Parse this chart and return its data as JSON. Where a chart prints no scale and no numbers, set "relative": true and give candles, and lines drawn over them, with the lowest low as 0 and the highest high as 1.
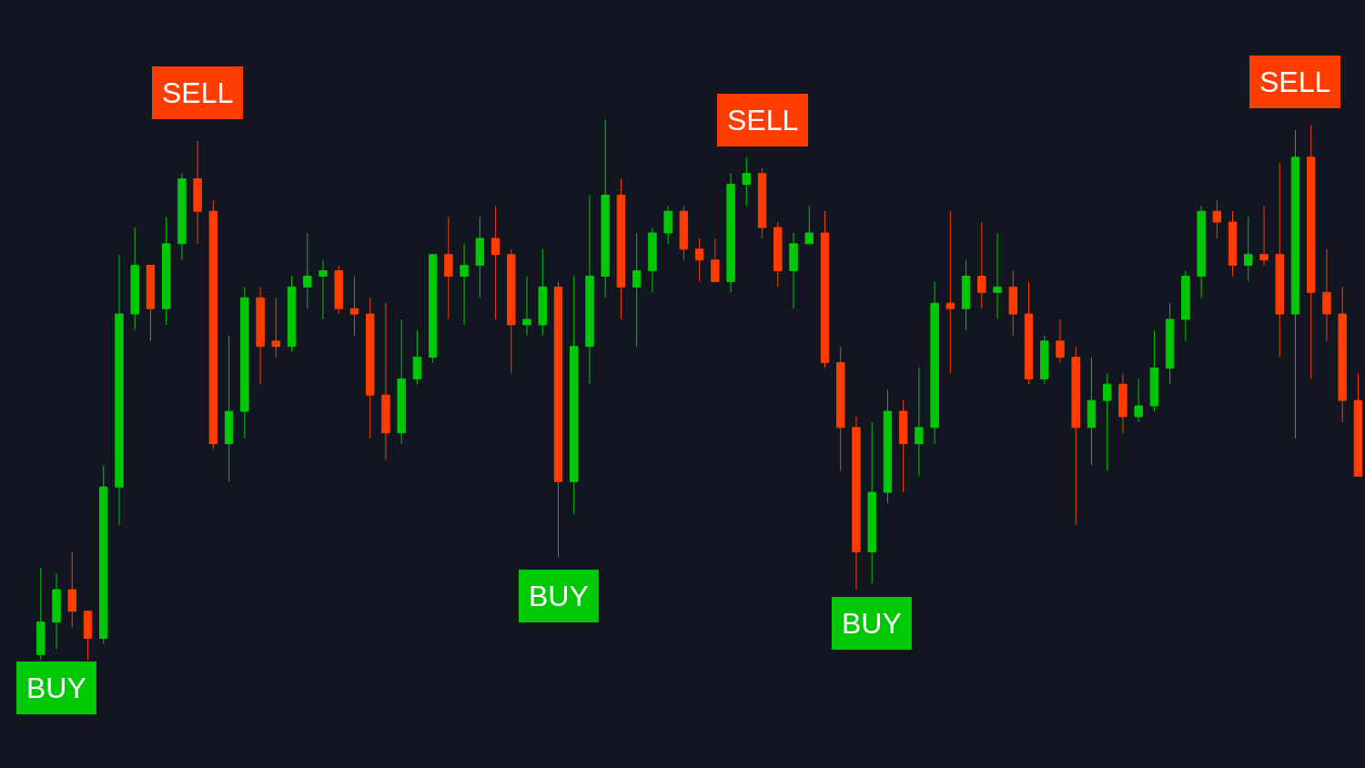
{
  "chart_data": {
    "type": "candlestick",
    "relative": true,
    "categories": [
      null,
      null,
      null,
      null,
      null,
      null,
      null,
      null,
      null,
      null,
      null,
      null,
      null,
      null,
      null,
      null,
      null,
      null,
      null,
      null,
      null,
      null,
      null,
      null,
      null,
      null,
      null,
      null,
      null,
      null,
      null,
      null,
      null,
      null,
      null,
      null,
      null,
      null,
      null,
      null,
      null,
      null,
      null,
      null,
      null,
      null,
      null,
      null,
      null,
      null,
      null,
      null,
      null,
      null,
      null,
      null,
      null,
      null,
      null,
      null,
      null,
      null,
      null,
      null,
      null,
      null,
      null,
      null,
      null,
      null,
      null,
      null,
      null,
      null,
      null,
      null,
      null,
      null,
      null,
      null,
      null,
      null,
      null,
      null,
      null
    ],
    "ohlc": [
      [
        0.01,
        0.17,
        0.0,
        0.07
      ],
      [
        0.07,
        0.16,
        0.02,
        0.13
      ],
      [
        0.13,
        0.2,
        0.06,
        0.09
      ],
      [
        0.09,
        0.09,
        0.0,
        0.04
      ],
      [
        0.04,
        0.36,
        0.03,
        0.32
      ],
      [
        0.32,
        0.75,
        0.25,
        0.64
      ],
      [
        0.64,
        0.8,
        0.61,
        0.73
      ],
      [
        0.73,
        0.73,
        0.59,
        0.65
      ],
      [
        0.65,
        0.82,
        0.62,
        0.77
      ],
      [
        0.77,
        0.9,
        0.74,
        0.89
      ],
      [
        0.89,
        0.96,
        0.77,
        0.83
      ],
      [
        0.83,
        0.85,
        0.39,
        0.4
      ],
      [
        0.4,
        0.6,
        0.33,
        0.46
      ],
      [
        0.46,
        0.69,
        0.41,
        0.67
      ],
      [
        0.67,
        0.69,
        0.51,
        0.58
      ],
      [
        0.59,
        0.67,
        0.56,
        0.58
      ],
      [
        0.58,
        0.71,
        0.57,
        0.69
      ],
      [
        0.69,
        0.79,
        0.65,
        0.71
      ],
      [
        0.71,
        0.74,
        0.63,
        0.72
      ],
      [
        0.72,
        0.73,
        0.64,
        0.65
      ],
      [
        0.65,
        0.71,
        0.6,
        0.64
      ],
      [
        0.64,
        0.67,
        0.41,
        0.49
      ],
      [
        0.49,
        0.66,
        0.37,
        0.42
      ],
      [
        0.42,
        0.63,
        0.4,
        0.52
      ],
      [
        0.52,
        0.61,
        0.51,
        0.56
      ],
      [
        0.56,
        0.75,
        0.55,
        0.75
      ],
      [
        0.75,
        0.82,
        0.63,
        0.71
      ],
      [
        0.71,
        0.77,
        0.62,
        0.73
      ],
      [
        0.73,
        0.82,
        0.67,
        0.78
      ],
      [
        0.78,
        0.84,
        0.63,
        0.75
      ],
      [
        0.75,
        0.76,
        0.53,
        0.62
      ],
      [
        0.62,
        0.71,
        0.6,
        0.63
      ],
      [
        0.62,
        0.76,
        0.6,
        0.69
      ],
      [
        0.69,
        0.7,
        0.19,
        0.33
      ],
      [
        0.33,
        0.71,
        0.27,
        0.58
      ],
      [
        0.58,
        0.86,
        0.51,
        0.71
      ],
      [
        0.71,
        1.0,
        0.67,
        0.86
      ],
      [
        0.86,
        0.89,
        0.63,
        0.69
      ],
      [
        0.69,
        0.79,
        0.58,
        0.72
      ],
      [
        0.72,
        0.8,
        0.68,
        0.79
      ],
      [
        0.79,
        0.84,
        0.77,
        0.83
      ],
      [
        0.83,
        0.84,
        0.74,
        0.76
      ],
      [
        0.76,
        0.78,
        0.7,
        0.74
      ],
      [
        0.74,
        0.78,
        0.7,
        0.7
      ],
      [
        0.7,
        0.9,
        0.68,
        0.88
      ],
      [
        0.88,
        0.93,
        0.84,
        0.9
      ],
      [
        0.9,
        0.91,
        0.78,
        0.8
      ],
      [
        0.8,
        0.81,
        0.69,
        0.72
      ],
      [
        0.72,
        0.79,
        0.65,
        0.77
      ],
      [
        0.77,
        0.84,
        0.77,
        0.79
      ],
      [
        0.79,
        0.83,
        0.54,
        0.55
      ],
      [
        0.55,
        0.58,
        0.35,
        0.43
      ],
      [
        0.43,
        0.45,
        0.13,
        0.2
      ],
      [
        0.2,
        0.44,
        0.14,
        0.31
      ],
      [
        0.31,
        0.5,
        0.29,
        0.46
      ],
      [
        0.46,
        0.48,
        0.31,
        0.4
      ],
      [
        0.4,
        0.54,
        0.34,
        0.43
      ],
      [
        0.43,
        0.7,
        0.4,
        0.66
      ],
      [
        0.66,
        0.83,
        0.53,
        0.65
      ],
      [
        0.65,
        0.74,
        0.61,
        0.71
      ],
      [
        0.71,
        0.81,
        0.65,
        0.68
      ],
      [
        0.68,
        0.79,
        0.63,
        0.69
      ],
      [
        0.69,
        0.72,
        0.6,
        0.64
      ],
      [
        0.64,
        0.7,
        0.51,
        0.52
      ],
      [
        0.52,
        0.6,
        0.51,
        0.59
      ],
      [
        0.59,
        0.63,
        0.55,
        0.56
      ],
      [
        0.56,
        0.58,
        0.25,
        0.43
      ],
      [
        0.43,
        0.56,
        0.36,
        0.48
      ],
      [
        0.48,
        0.53,
        0.35,
        0.51
      ],
      [
        0.51,
        0.53,
        0.42,
        0.45
      ],
      [
        0.45,
        0.52,
        0.44,
        0.47
      ],
      [
        0.47,
        0.61,
        0.46,
        0.54
      ],
      [
        0.54,
        0.66,
        0.51,
        0.63
      ],
      [
        0.63,
        0.72,
        0.59,
        0.71
      ],
      [
        0.71,
        0.84,
        0.67,
        0.83
      ],
      [
        0.83,
        0.85,
        0.78,
        0.81
      ],
      [
        0.81,
        0.83,
        0.71,
        0.73
      ],
      [
        0.73,
        0.82,
        0.7,
        0.75
      ],
      [
        0.75,
        0.84,
        0.73,
        0.74
      ],
      [
        0.75,
        0.92,
        0.56,
        0.64
      ],
      [
        0.64,
        0.98,
        0.41,
        0.93
      ],
      [
        0.93,
        0.99,
        0.52,
        0.68
      ],
      [
        0.68,
        0.76,
        0.59,
        0.64
      ],
      [
        0.64,
        0.69,
        0.44,
        0.48
      ],
      [
        0.48,
        0.53,
        0.34,
        0.34
      ]
    ],
    "annotations": [
      {
        "text": "SELL",
        "y": 0.96
      },
      {
        "text": "SELL",
        "y": 0.91
      },
      {
        "text": "SELL",
        "y": 0.98
      },
      {
        "text": "BUY",
        "y": 0.02
      },
      {
        "text": "BUY",
        "y": 0.19
      },
      {
        "text": "BUY",
        "y": 0.14
      }
    ]
  }
}
